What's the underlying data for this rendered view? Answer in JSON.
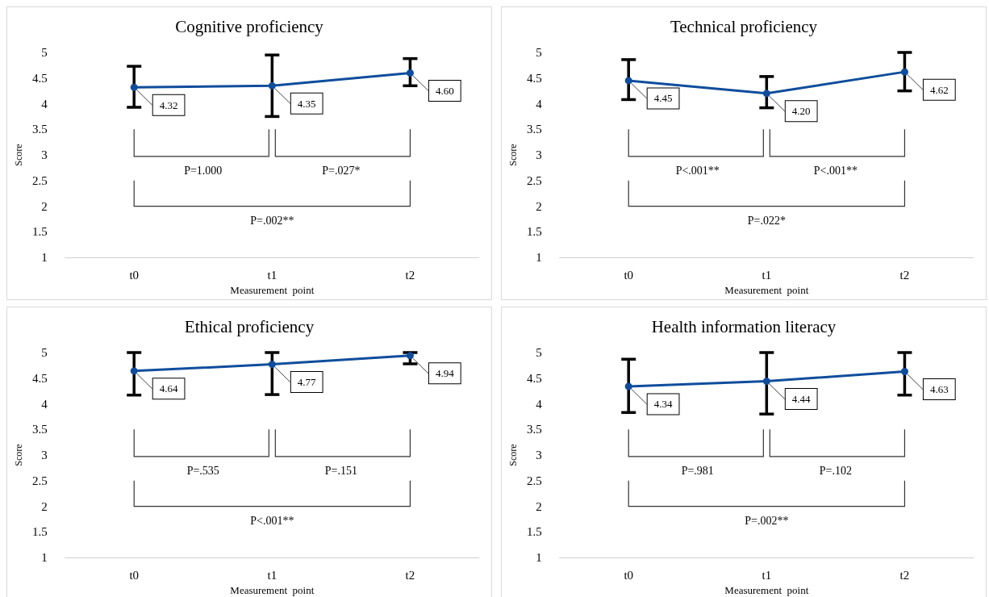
{
  "chart_data": [
    {
      "type": "line",
      "title": "Cognitive proficiency",
      "xlabel": "Measurement  point",
      "ylabel": "Score",
      "categories": [
        "t0",
        "t1",
        "t2"
      ],
      "color": "#0f4d9c",
      "values": [
        4.32,
        4.35,
        4.6
      ],
      "value_labels": [
        "4.32",
        "4.35",
        "4.60"
      ],
      "errors": [
        [
          3.93,
          4.73
        ],
        [
          3.75,
          4.95
        ],
        [
          4.35,
          4.88
        ]
      ],
      "ylim": [
        1,
        5
      ],
      "yticks": [
        1,
        1.5,
        2,
        2.5,
        3,
        3.5,
        4,
        4.5,
        5
      ],
      "marker": "circle",
      "grid": false,
      "annotations": [
        "P=1.000",
        "P=.027*",
        "P=.002**"
      ]
    },
    {
      "type": "line",
      "title": "Technical proficiency",
      "xlabel": "Measurement  point",
      "ylabel": "Score",
      "categories": [
        "t0",
        "t1",
        "t2"
      ],
      "color": "#0f4d9c",
      "values": [
        4.45,
        4.2,
        4.62
      ],
      "value_labels": [
        "4.45",
        "4.20",
        "4.62"
      ],
      "errors": [
        [
          4.08,
          4.86
        ],
        [
          3.92,
          4.53
        ],
        [
          4.25,
          5.0
        ]
      ],
      "ylim": [
        1,
        5
      ],
      "yticks": [
        1,
        1.5,
        2,
        2.5,
        3,
        3.5,
        4,
        4.5,
        5
      ],
      "marker": "circle",
      "grid": false,
      "annotations": [
        "P<.001**",
        "P<.001**",
        "P=.022*"
      ]
    },
    {
      "type": "line",
      "title": "Ethical proficiency",
      "xlabel": "Measurement  point",
      "ylabel": "Score",
      "categories": [
        "t0",
        "t1",
        "t2"
      ],
      "color": "#0f4d9c",
      "values": [
        4.64,
        4.77,
        4.94
      ],
      "value_labels": [
        "4.64",
        "4.77",
        "4.94"
      ],
      "errors": [
        [
          4.17,
          5.0
        ],
        [
          4.18,
          5.0
        ],
        [
          4.78,
          5.0
        ]
      ],
      "ylim": [
        1,
        5
      ],
      "yticks": [
        1,
        1.5,
        2,
        2.5,
        3,
        3.5,
        4,
        4.5,
        5
      ],
      "marker": "circle",
      "grid": false,
      "annotations": [
        "P=.535",
        "P=.151",
        "P<.001**"
      ]
    },
    {
      "type": "line",
      "title": "Health information literacy",
      "xlabel": "Measurement  point",
      "ylabel": "Score",
      "categories": [
        "t0",
        "t1",
        "t2"
      ],
      "color": "#0f4d9c",
      "values": [
        4.34,
        4.44,
        4.63
      ],
      "value_labels": [
        "4.34",
        "4.44",
        "4.63"
      ],
      "errors": [
        [
          3.83,
          4.87
        ],
        [
          3.8,
          5.0
        ],
        [
          4.17,
          5.0
        ]
      ],
      "ylim": [
        1,
        5
      ],
      "yticks": [
        1,
        1.5,
        2,
        2.5,
        3,
        3.5,
        4,
        4.5,
        5
      ],
      "marker": "circle",
      "grid": false,
      "annotations": [
        "P=.981",
        "P=.102",
        "P=.002**"
      ]
    }
  ]
}
